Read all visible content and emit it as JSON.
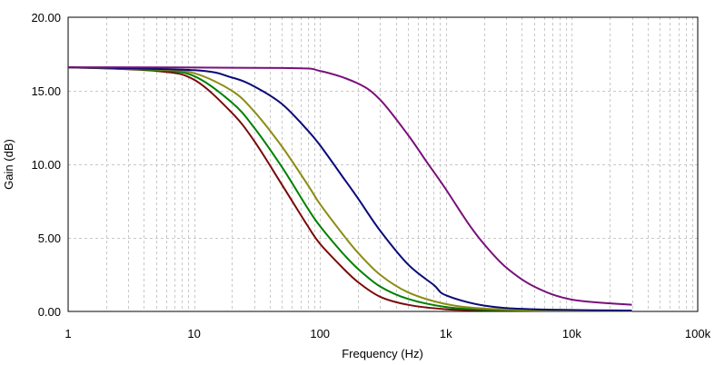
{
  "chart_data": {
    "type": "line",
    "xlabel": "Frequency (Hz)",
    "ylabel": "Gain (dB)",
    "x_scale": "log",
    "xlim": [
      1,
      100000
    ],
    "ylim": [
      0,
      20
    ],
    "grid": true,
    "x_ticks": [
      {
        "value": 1,
        "label": "1"
      },
      {
        "value": 10,
        "label": "10"
      },
      {
        "value": 100,
        "label": "100"
      },
      {
        "value": 1000,
        "label": "1k"
      },
      {
        "value": 10000,
        "label": "10k"
      },
      {
        "value": 100000,
        "label": "100k"
      }
    ],
    "y_ticks": [
      {
        "value": 0,
        "label": "0.00"
      },
      {
        "value": 5,
        "label": "5.00"
      },
      {
        "value": 10,
        "label": "10.00"
      },
      {
        "value": 15,
        "label": "15.00"
      },
      {
        "value": 20,
        "label": "20.00"
      }
    ],
    "series": [
      {
        "color": "#7a0a0a",
        "x": [
          1,
          5,
          10,
          20,
          30,
          50,
          80,
          100,
          150,
          200,
          300,
          500,
          1000,
          2000,
          5000,
          30000
        ],
        "y": [
          16.6,
          16.35,
          15.75,
          13.5,
          11.6,
          8.6,
          5.8,
          4.6,
          3.0,
          2.0,
          1.0,
          0.45,
          0.15,
          0.08,
          0.05,
          0.04
        ]
      },
      {
        "color": "#008000",
        "x": [
          1,
          5,
          10,
          20,
          30,
          50,
          80,
          100,
          150,
          200,
          300,
          500,
          1000,
          2000,
          5000,
          30000
        ],
        "y": [
          16.6,
          16.4,
          16.0,
          14.2,
          12.5,
          9.8,
          7.0,
          5.8,
          4.0,
          2.9,
          1.7,
          0.85,
          0.3,
          0.12,
          0.06,
          0.04
        ]
      },
      {
        "color": "#8c8c14",
        "x": [
          1,
          5,
          10,
          20,
          30,
          50,
          80,
          100,
          150,
          200,
          300,
          500,
          1000,
          2000,
          5000,
          30000
        ],
        "y": [
          16.6,
          16.45,
          16.2,
          15.0,
          13.6,
          11.2,
          8.6,
          7.3,
          5.3,
          4.0,
          2.5,
          1.3,
          0.5,
          0.2,
          0.08,
          0.04
        ]
      },
      {
        "color": "#0a0a78",
        "x": [
          1,
          10,
          20,
          30,
          50,
          80,
          100,
          150,
          200,
          300,
          500,
          800,
          1000,
          2000,
          5000,
          30000
        ],
        "y": [
          16.6,
          16.4,
          15.9,
          15.3,
          14.1,
          12.3,
          11.3,
          9.2,
          7.7,
          5.5,
          3.2,
          1.8,
          1.1,
          0.4,
          0.15,
          0.06
        ]
      },
      {
        "color": "#7a107a",
        "x": [
          1,
          50,
          100,
          200,
          300,
          500,
          700,
          1000,
          1500,
          2000,
          3000,
          5000,
          10000,
          30000
        ],
        "y": [
          16.6,
          16.55,
          16.35,
          15.5,
          14.4,
          12.0,
          10.2,
          8.3,
          6.0,
          4.6,
          3.0,
          1.7,
          0.8,
          0.45
        ]
      }
    ]
  }
}
